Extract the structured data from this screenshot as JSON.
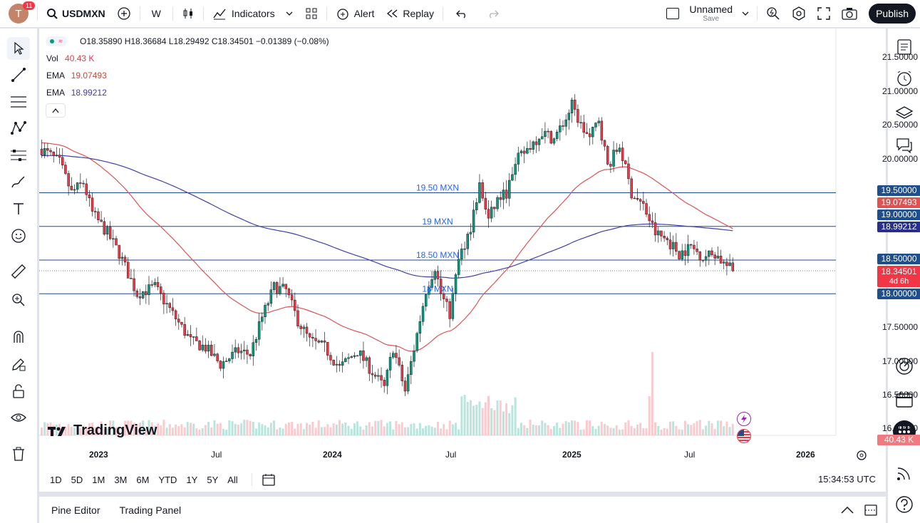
{
  "header": {
    "avatar_letter": "T",
    "notification_count": "11",
    "symbol": "USDMXN",
    "interval": "W",
    "indicators_label": "Indicators",
    "alert_label": "Alert",
    "replay_label": "Replay",
    "layout_name": "Unnamed",
    "layout_sub": "Save",
    "publish_label": "Publish"
  },
  "legend": {
    "ohlc": "O18.35890 H18.36684 L18.29492 C18.34501 −0.01389 (−0.08%)",
    "vol_label": "Vol",
    "vol_value": "40.43 K",
    "ema1_label": "EMA",
    "ema1_value": "19.07493",
    "ema2_label": "EMA",
    "ema2_value": "18.99212"
  },
  "chart": {
    "watermark": "TradingView",
    "horizontal_lines": [
      {
        "label": "19.50 MXN",
        "price": 19.5
      },
      {
        "label": "19 MXN",
        "price": 19.0
      },
      {
        "label": "18.50 MXN",
        "price": 18.5
      },
      {
        "label": "18 MXN",
        "price": 18.0
      }
    ],
    "price_axis": [
      "21.50000",
      "21.00000",
      "20.50000",
      "20.00000",
      "17.50000",
      "17.00000",
      "16.50000",
      "16.00000"
    ],
    "badges": {
      "p1950": "19.50000",
      "ema1": "19.07493",
      "p1900": "19.00000",
      "ema2": "18.99212",
      "p1850": "18.50000",
      "last": "18.34501",
      "countdown": "4d 6h",
      "p1800": "18.00000",
      "vol": "40.43 K"
    },
    "time_axis": [
      "2023",
      "Jul",
      "2024",
      "Jul",
      "2025",
      "Jul",
      "2026"
    ],
    "colors": {
      "up": "#089981",
      "down": "#f23645",
      "ema_fast": "#e05252",
      "ema_slow": "#3f3fa8",
      "hline": "#1e4e8c"
    }
  },
  "bottom": {
    "timeframes": [
      "1D",
      "5D",
      "1M",
      "3M",
      "6M",
      "YTD",
      "1Y",
      "5Y",
      "All"
    ],
    "clock": "15:34:53 UTC",
    "pine_editor": "Pine Editor",
    "trading_panel": "Trading Panel"
  }
}
